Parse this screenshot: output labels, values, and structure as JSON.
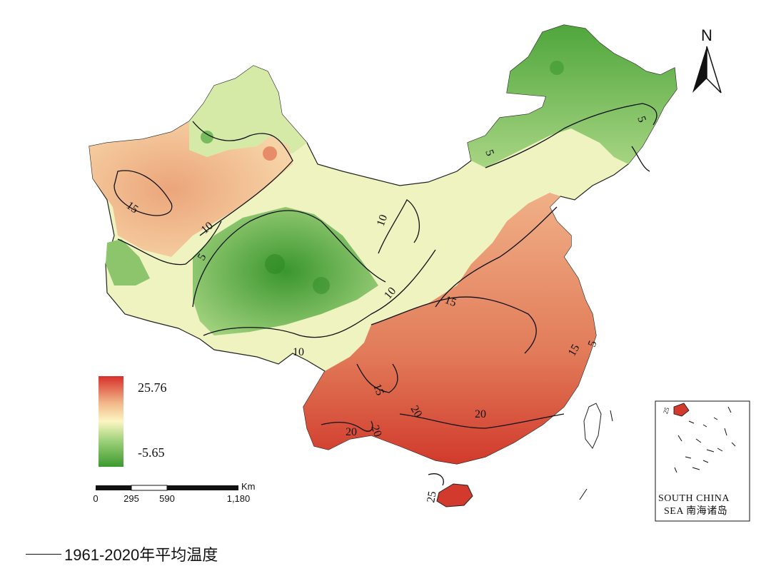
{
  "map": {
    "north_label": "N",
    "legend": {
      "max_label": "25.76",
      "min_label": "-5.65",
      "colors": {
        "high": "#d7302b",
        "mid_high": "#f2b98a",
        "mid": "#fbf6c2",
        "mid_low": "#a3d37e",
        "low": "#3c9a2f"
      }
    },
    "scale_bar": {
      "unit": "Km",
      "ticks": [
        "0",
        "295",
        "590",
        "1,180"
      ]
    },
    "inset": {
      "line1": "SOUTH CHINA",
      "line2": "SEA 南海诸岛",
      "label": "25"
    },
    "contour_labels": [
      {
        "text": "15"
      },
      {
        "text": "10"
      },
      {
        "text": "5"
      },
      {
        "text": "10"
      },
      {
        "text": "10"
      },
      {
        "text": "10"
      },
      {
        "text": "15"
      },
      {
        "text": "15"
      },
      {
        "text": "15"
      },
      {
        "text": "20"
      },
      {
        "text": "20"
      },
      {
        "text": "20"
      },
      {
        "text": "20"
      },
      {
        "text": "5"
      },
      {
        "text": "5"
      },
      {
        "text": "5"
      },
      {
        "text": "25"
      }
    ]
  },
  "caption": {
    "text": "1961-2020年平均温度"
  }
}
